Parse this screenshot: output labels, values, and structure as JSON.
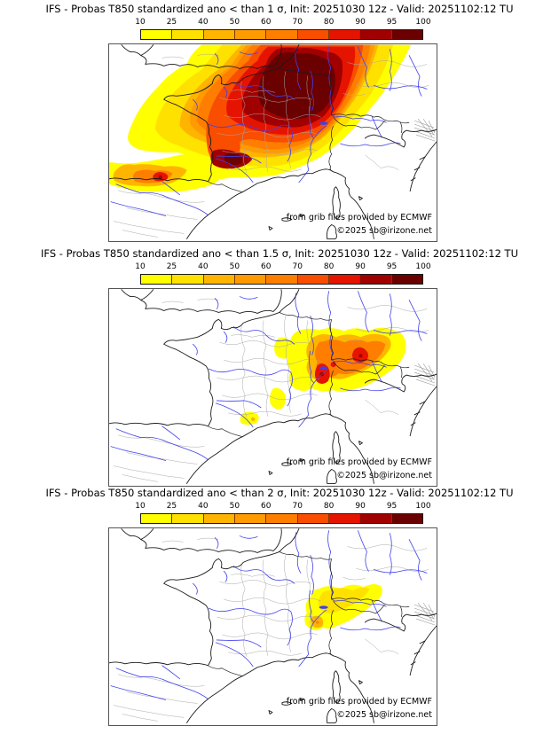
{
  "colorbar": {
    "ticks": [
      "10",
      "25",
      "40",
      "50",
      "60",
      "70",
      "80",
      "90",
      "95",
      "100"
    ],
    "colors": [
      "#FFFF00",
      "#FFE100",
      "#FFB400",
      "#FF9A00",
      "#FF7E00",
      "#F94D00",
      "#E51400",
      "#A00000",
      "#6B0000"
    ]
  },
  "panels": [
    {
      "title": "IFS - Probas T850  standardized ano < than 1 σ, Init: 20251030 12z - Valid: 20251102:12 TU",
      "threshold": "1 σ"
    },
    {
      "title": "IFS - Probas T850  standardized ano < than 1.5 σ, Init: 20251030 12z - Valid: 20251102:12 TU",
      "threshold": "1.5 σ"
    },
    {
      "title": "IFS - Probas T850  standardized ano < than 2 σ, Init: 20251030 12z - Valid: 20251102:12 TU",
      "threshold": "2 σ"
    }
  ],
  "shared": {
    "model": "IFS",
    "parameter": "Probas T850",
    "init": "20251030 12z",
    "valid": "20251102:12 TU",
    "credit_line1": "from grib files provided by ECMWF",
    "credit_line2": "©2025 sb@irizone.net"
  }
}
